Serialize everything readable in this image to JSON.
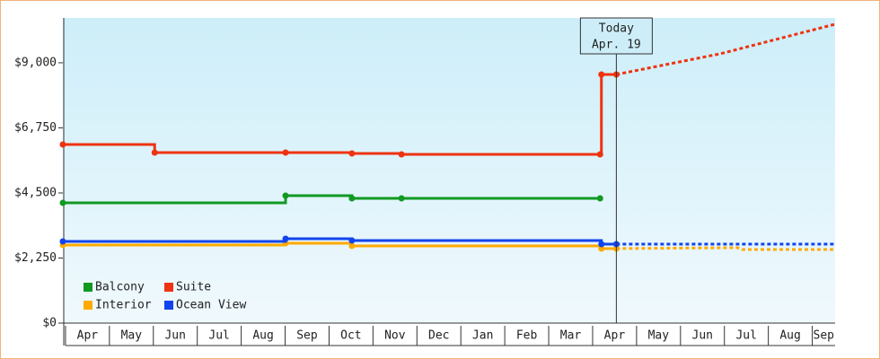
{
  "chart_data": {
    "type": "step-line",
    "categories": [
      "Apr",
      "May",
      "Jun",
      "Jul",
      "Aug",
      "Sep",
      "Oct",
      "Nov",
      "Dec",
      "Jan",
      "Feb",
      "Mar",
      "Apr",
      "May",
      "Jun",
      "Jul",
      "Aug",
      "Sep"
    ],
    "xlim": [
      -0.06,
      17.52
    ],
    "ylim": [
      0,
      10550
    ],
    "yticks": [
      {
        "value": 0,
        "label": "$0"
      },
      {
        "value": 2250,
        "label": "$2,250"
      },
      {
        "value": 4500,
        "label": "$4,500"
      },
      {
        "value": 6750,
        "label": "$6,750"
      },
      {
        "value": 9000,
        "label": "$9,000"
      }
    ],
    "today": {
      "x": 12.54,
      "label": [
        "Today",
        "Apr. 19"
      ]
    },
    "series": [
      {
        "name": "Balcony",
        "color": "#119922",
        "x": [
          -0.06,
          5.01,
          6.52,
          7.65,
          12.17
        ],
        "values": [
          4158,
          4406,
          4313,
          4313,
          4313
        ]
      },
      {
        "name": "Suite",
        "color": "#ee3311",
        "x": [
          -0.06,
          2.03,
          5.01,
          6.52,
          7.65,
          12.17,
          12.2,
          12.54
        ],
        "values": [
          6175,
          5896,
          5896,
          5865,
          5834,
          5834,
          8596,
          8596
        ],
        "projection": {
          "x": [
            12.54,
            14.9,
            17.52
          ],
          "values": [
            8596,
            9310,
            10333
          ]
        }
      },
      {
        "name": "Interior",
        "color": "#ffaa00",
        "x": [
          -0.06,
          5.01,
          6.52,
          12.2,
          12.54
        ],
        "values": [
          2700,
          2762,
          2669,
          2576,
          2576
        ],
        "projection": {
          "x": [
            12.54,
            15.3,
            15.4,
            17.52
          ],
          "values": [
            2576,
            2607,
            2545,
            2545
          ]
        }
      },
      {
        "name": "Ocean View",
        "color": "#1144ee",
        "x": [
          -0.06,
          5.01,
          6.52,
          12.2,
          12.54
        ],
        "values": [
          2824,
          2917,
          2855,
          2731,
          2731
        ],
        "projection": {
          "x": [
            12.54,
            17.52
          ],
          "values": [
            2731,
            2731
          ]
        }
      }
    ]
  }
}
